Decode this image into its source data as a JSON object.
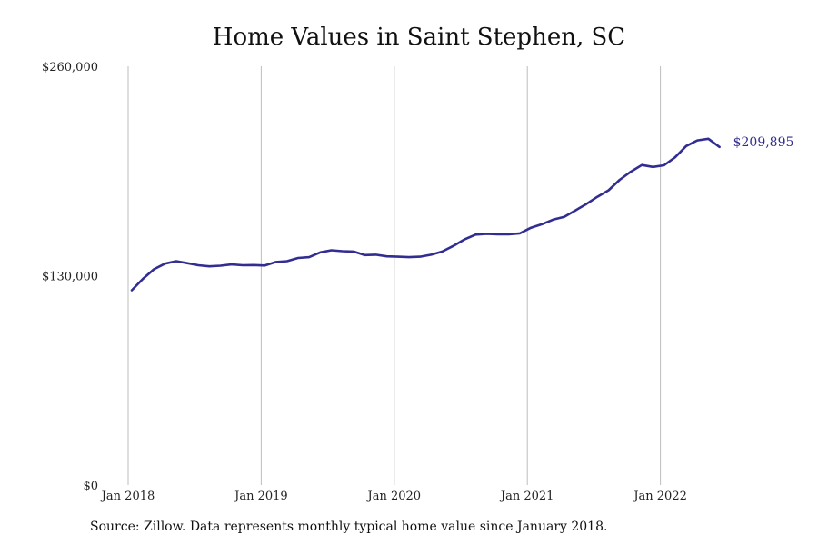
{
  "page": {
    "title": "Home Values in Saint Stephen, SC"
  },
  "footer": {
    "source": "Source: Zillow. Data represents monthly typical home value since January 2018."
  },
  "colors": {
    "line": "#322e91",
    "grid": "#bdbdbd",
    "text": "#222222"
  },
  "chart_data": {
    "type": "line",
    "title": "Home Values in Saint Stephen, SC",
    "xlabel": "",
    "ylabel": "",
    "ylim": [
      0,
      260000
    ],
    "yticks": [
      0,
      130000,
      260000
    ],
    "ytick_labels": [
      "$0",
      "$130,000",
      "$260,000"
    ],
    "xtick_labels": [
      "Jan 2018",
      "Jan 2019",
      "Jan 2020",
      "Jan 2021",
      "Jan 2022"
    ],
    "grid": "vertical",
    "end_label": "$209,895",
    "x": [
      "2018-01",
      "2018-02",
      "2018-03",
      "2018-04",
      "2018-05",
      "2018-06",
      "2018-07",
      "2018-08",
      "2018-09",
      "2018-10",
      "2018-11",
      "2018-12",
      "2019-01",
      "2019-02",
      "2019-03",
      "2019-04",
      "2019-05",
      "2019-06",
      "2019-07",
      "2019-08",
      "2019-09",
      "2019-10",
      "2019-11",
      "2019-12",
      "2020-01",
      "2020-02",
      "2020-03",
      "2020-04",
      "2020-05",
      "2020-06",
      "2020-07",
      "2020-08",
      "2020-09",
      "2020-10",
      "2020-11",
      "2020-12",
      "2021-01",
      "2021-02",
      "2021-03",
      "2021-04",
      "2021-05",
      "2021-06",
      "2021-07",
      "2021-08",
      "2021-09",
      "2021-10",
      "2021-11",
      "2021-12",
      "2022-01",
      "2022-02",
      "2022-03",
      "2022-04",
      "2022-05",
      "2022-06"
    ],
    "series": [
      {
        "values": [
          121000,
          128000,
          134000,
          137500,
          139000,
          137800,
          136500,
          135800,
          136200,
          137000,
          136500,
          136600,
          136300,
          138500,
          139000,
          141000,
          141500,
          144500,
          145800,
          145200,
          145000,
          142800,
          143000,
          142000,
          141800,
          141500,
          141800,
          143000,
          145000,
          148500,
          152500,
          155500,
          156000,
          155700,
          155700,
          156300,
          159800,
          162000,
          164800,
          166500,
          170500,
          174500,
          179000,
          183000,
          189500,
          194500,
          198700,
          197500,
          198500,
          203500,
          210500,
          214000,
          215000,
          209895
        ]
      }
    ]
  }
}
